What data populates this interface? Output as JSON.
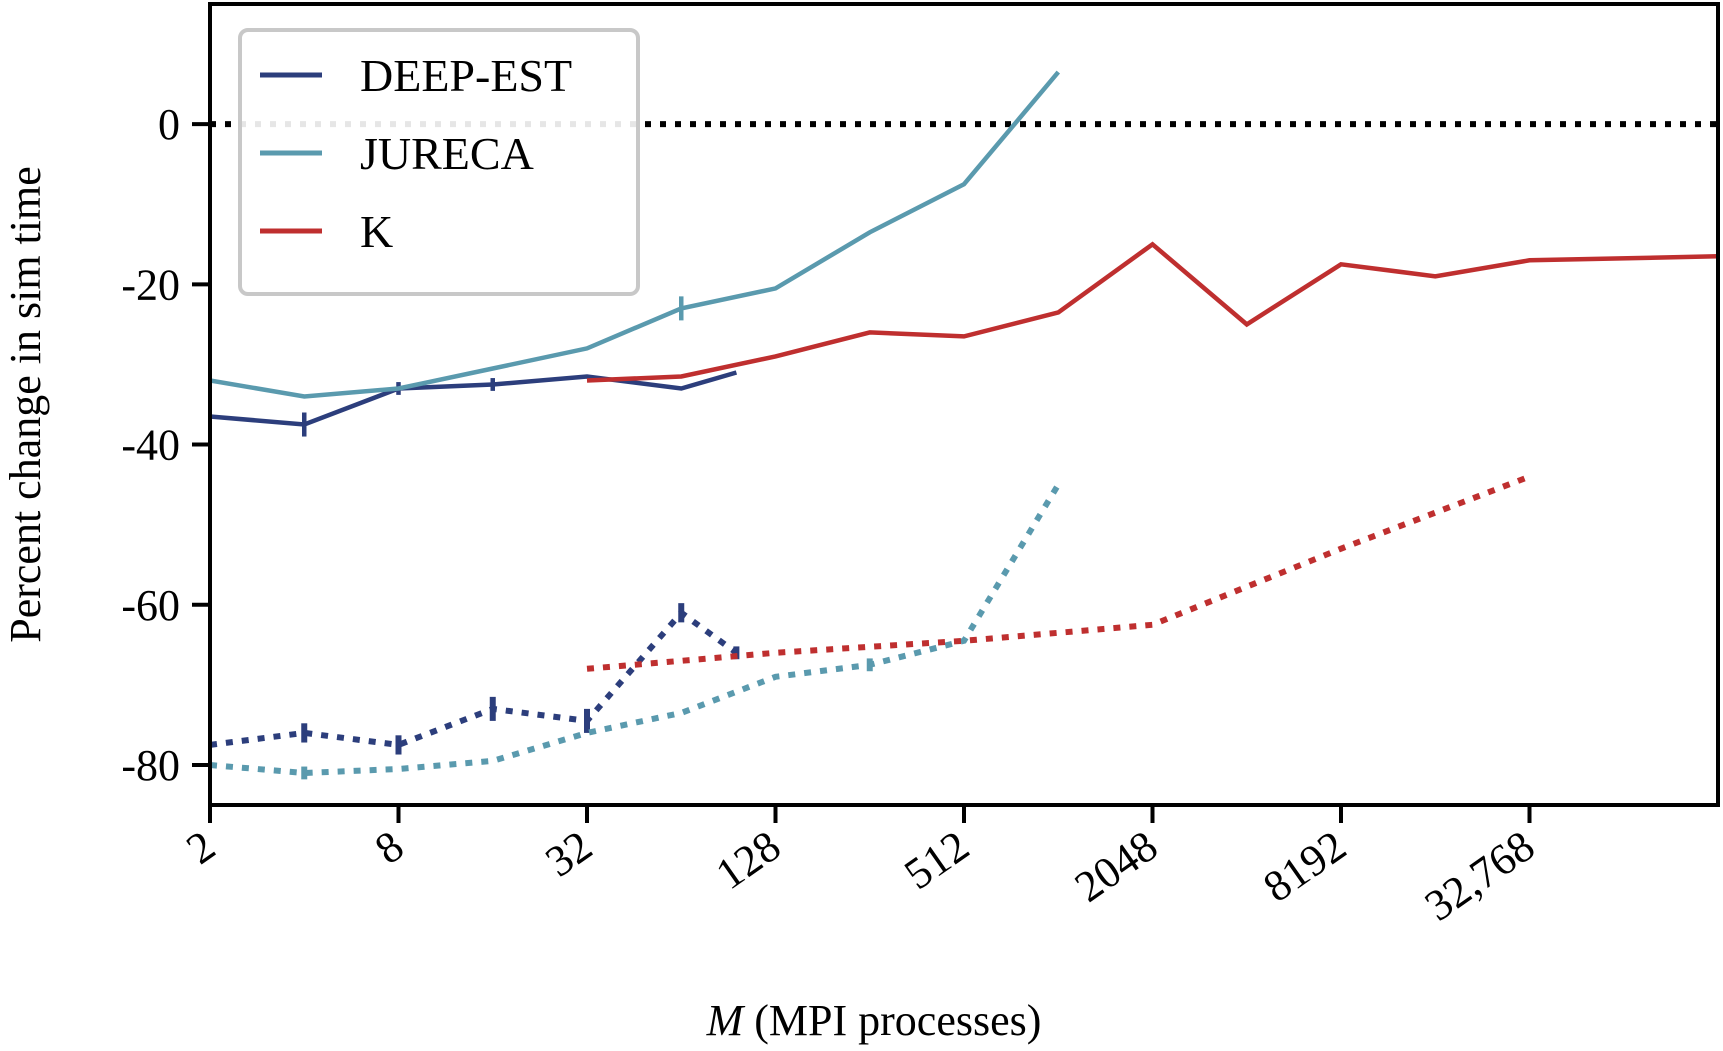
{
  "chart_data": {
    "type": "line",
    "title": "",
    "xlabel": {
      "var": "M",
      "rest": " (MPI processes)"
    },
    "ylabel": "Percent change in sim time",
    "x_scale": "log2",
    "xlim": [
      2,
      131072
    ],
    "ylim": [
      -85,
      15
    ],
    "x_ticks": [
      2,
      8,
      32,
      128,
      512,
      2048,
      8192,
      32768
    ],
    "x_tick_labels": [
      "2",
      "8",
      "32",
      "128",
      "512",
      "2048",
      "8192",
      "32,768"
    ],
    "y_ticks": [
      0,
      -20,
      -40,
      -60,
      -80
    ],
    "y_tick_labels": [
      "0",
      "-20",
      "-40",
      "-60",
      "-80"
    ],
    "grid": false,
    "legend_position": "top-left",
    "reference_line": {
      "y": 0,
      "style": "dotted",
      "color": "#000000"
    },
    "series": [
      {
        "name": "DEEP-EST",
        "color": "#2c3e7c",
        "style": "solid",
        "x": [
          2,
          4,
          8,
          16,
          32,
          64,
          96
        ],
        "y": [
          -36.5,
          -37.5,
          -33,
          -32.5,
          -31.5,
          -33,
          -31
        ],
        "err": [
          0,
          1.5,
          0.8,
          0.8,
          0,
          0,
          0
        ]
      },
      {
        "name": "JURECA",
        "color": "#5a9aae",
        "style": "solid",
        "x": [
          2,
          4,
          8,
          16,
          32,
          64,
          128,
          256,
          512,
          1024
        ],
        "y": [
          -32,
          -34,
          -33,
          -30.5,
          -28,
          -23,
          -20.5,
          -13.5,
          -7.5,
          6.5
        ],
        "err": [
          0,
          0,
          0,
          0,
          0,
          1.5,
          0,
          0,
          0,
          0
        ]
      },
      {
        "name": "K",
        "color": "#bf2f2f",
        "style": "solid",
        "x": [
          32,
          64,
          128,
          256,
          512,
          1024,
          2048,
          4096,
          8192,
          16384,
          32768,
          131072
        ],
        "y": [
          -32,
          -31.5,
          -29,
          -26,
          -26.5,
          -23.5,
          -15,
          -25,
          -17.5,
          -19,
          -17,
          -16.5
        ],
        "err": []
      },
      {
        "name": "",
        "color": "#2c3e7c",
        "style": "dotted",
        "x": [
          2,
          4,
          8,
          16,
          32,
          64,
          96
        ],
        "y": [
          -77.5,
          -76,
          -77.5,
          -73,
          -74.5,
          -61,
          -66
        ],
        "err": [
          0,
          1.2,
          1.2,
          1.5,
          1.5,
          1.2,
          0.8
        ]
      },
      {
        "name": "",
        "color": "#5a9aae",
        "style": "dotted",
        "x": [
          2,
          4,
          8,
          16,
          32,
          64,
          128,
          256,
          512,
          1024
        ],
        "y": [
          -80,
          -81,
          -80.5,
          -79.5,
          -76,
          -73.5,
          -69,
          -67.5,
          -64.5,
          -45
        ],
        "err": [
          0,
          0.8,
          0,
          0,
          0,
          0,
          0,
          0.8,
          0,
          0
        ]
      },
      {
        "name": "",
        "color": "#bf2f2f",
        "style": "dotted",
        "x": [
          32,
          128,
          512,
          2048,
          8192,
          32768
        ],
        "y": [
          -68,
          -66,
          -64.5,
          -62.5,
          -53,
          -44
        ],
        "err": []
      }
    ]
  }
}
